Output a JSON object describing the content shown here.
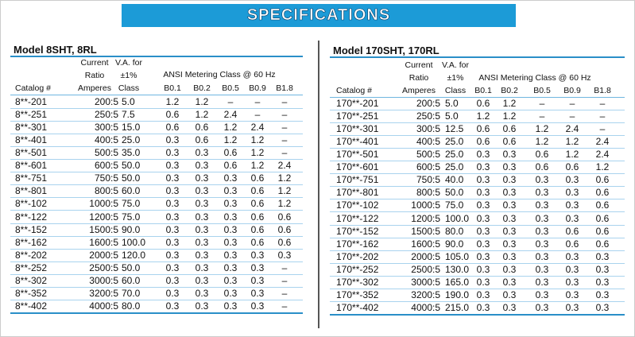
{
  "banner": "SPECIFICATIONS",
  "tables": [
    {
      "title": "Model 8SHT, 8RL",
      "headers": {
        "catalog": "Catalog #",
        "ratio": [
          "Current",
          "Ratio",
          "Amperes"
        ],
        "va": [
          "V.A. for",
          "±1%",
          "Class"
        ],
        "group": "ANSI Metering Class @ 60 Hz",
        "classes": [
          "B0.1",
          "B0.2",
          "B0.5",
          "B0.9",
          "B1.8"
        ]
      },
      "rows": [
        [
          "8**-201",
          "200:5",
          "5.0",
          "1.2",
          "1.2",
          "–",
          "–",
          "–"
        ],
        [
          "8**-251",
          "250:5",
          "7.5",
          "0.6",
          "1.2",
          "2.4",
          "–",
          "–"
        ],
        [
          "8**-301",
          "300:5",
          "15.0",
          "0.6",
          "0.6",
          "1.2",
          "2.4",
          "–"
        ],
        [
          "8**-401",
          "400:5",
          "25.0",
          "0.3",
          "0.6",
          "1.2",
          "1.2",
          "–"
        ],
        [
          "8**-501",
          "500:5",
          "35.0",
          "0.3",
          "0.3",
          "0.6",
          "1.2",
          "–"
        ],
        [
          "8**-601",
          "600:5",
          "50.0",
          "0.3",
          "0.3",
          "0.6",
          "1.2",
          "2.4"
        ],
        [
          "8**-751",
          "750:5",
          "50.0",
          "0.3",
          "0.3",
          "0.3",
          "0.6",
          "1.2"
        ],
        [
          "8**-801",
          "800:5",
          "60.0",
          "0.3",
          "0.3",
          "0.3",
          "0.6",
          "1.2"
        ],
        [
          "8**-102",
          "1000:5",
          "75.0",
          "0.3",
          "0.3",
          "0.3",
          "0.6",
          "1.2"
        ],
        [
          "8**-122",
          "1200:5",
          "75.0",
          "0.3",
          "0.3",
          "0.3",
          "0.6",
          "0.6"
        ],
        [
          "8**-152",
          "1500:5",
          "90.0",
          "0.3",
          "0.3",
          "0.3",
          "0.6",
          "0.6"
        ],
        [
          "8**-162",
          "1600:5",
          "100.0",
          "0.3",
          "0.3",
          "0.3",
          "0.6",
          "0.6"
        ],
        [
          "8**-202",
          "2000:5",
          "120.0",
          "0.3",
          "0.3",
          "0.3",
          "0.3",
          "0.3"
        ],
        [
          "8**-252",
          "2500:5",
          "50.0",
          "0.3",
          "0.3",
          "0.3",
          "0.3",
          "–"
        ],
        [
          "8**-302",
          "3000:5",
          "60.0",
          "0.3",
          "0.3",
          "0.3",
          "0.3",
          "–"
        ],
        [
          "8**-352",
          "3200:5",
          "70.0",
          "0.3",
          "0.3",
          "0.3",
          "0.3",
          "–"
        ],
        [
          "8**-402",
          "4000:5",
          "80.0",
          "0.3",
          "0.3",
          "0.3",
          "0.3",
          "–"
        ]
      ]
    },
    {
      "title": "Model 170SHT, 170RL",
      "headers": {
        "catalog": "Catalog #",
        "ratio": [
          "Current",
          "Ratio",
          "Amperes"
        ],
        "va": [
          "V.A. for",
          "±1%",
          "Class"
        ],
        "group": "ANSI Metering Class @ 60 Hz",
        "classes": [
          "B0.1",
          "B0.2",
          "B0.5",
          "B0.9",
          "B1.8"
        ]
      },
      "rows": [
        [
          "170**-201",
          "200:5",
          "5.0",
          "0.6",
          "1.2",
          "–",
          "–",
          "–"
        ],
        [
          "170**-251",
          "250:5",
          "5.0",
          "1.2",
          "1.2",
          "–",
          "–",
          "–"
        ],
        [
          "170**-301",
          "300:5",
          "12.5",
          "0.6",
          "0.6",
          "1.2",
          "2.4",
          "–"
        ],
        [
          "170**-401",
          "400:5",
          "25.0",
          "0.6",
          "0.6",
          "1.2",
          "1.2",
          "2.4"
        ],
        [
          "170**-501",
          "500:5",
          "25.0",
          "0.3",
          "0.3",
          "0.6",
          "1.2",
          "2.4"
        ],
        [
          "170**-601",
          "600:5",
          "25.0",
          "0.3",
          "0.3",
          "0.6",
          "0.6",
          "1.2"
        ],
        [
          "170**-751",
          "750:5",
          "40.0",
          "0.3",
          "0.3",
          "0.3",
          "0.3",
          "0.6"
        ],
        [
          "170**-801",
          "800:5",
          "50.0",
          "0.3",
          "0.3",
          "0.3",
          "0.3",
          "0.6"
        ],
        [
          "170**-102",
          "1000:5",
          "75.0",
          "0.3",
          "0.3",
          "0.3",
          "0.3",
          "0.6"
        ],
        [
          "170**-122",
          "1200:5",
          "100.0",
          "0.3",
          "0.3",
          "0.3",
          "0.3",
          "0.6"
        ],
        [
          "170**-152",
          "1500:5",
          "80.0",
          "0.3",
          "0.3",
          "0.3",
          "0.6",
          "0.6"
        ],
        [
          "170**-162",
          "1600:5",
          "90.0",
          "0.3",
          "0.3",
          "0.3",
          "0.6",
          "0.6"
        ],
        [
          "170**-202",
          "2000:5",
          "105.0",
          "0.3",
          "0.3",
          "0.3",
          "0.3",
          "0.3"
        ],
        [
          "170**-252",
          "2500:5",
          "130.0",
          "0.3",
          "0.3",
          "0.3",
          "0.3",
          "0.3"
        ],
        [
          "170**-302",
          "3000:5",
          "165.0",
          "0.3",
          "0.3",
          "0.3",
          "0.3",
          "0.3"
        ],
        [
          "170**-352",
          "3200:5",
          "190.0",
          "0.3",
          "0.3",
          "0.3",
          "0.3",
          "0.3"
        ],
        [
          "170**-402",
          "4000:5",
          "215.0",
          "0.3",
          "0.3",
          "0.3",
          "0.3",
          "0.3"
        ]
      ]
    }
  ]
}
